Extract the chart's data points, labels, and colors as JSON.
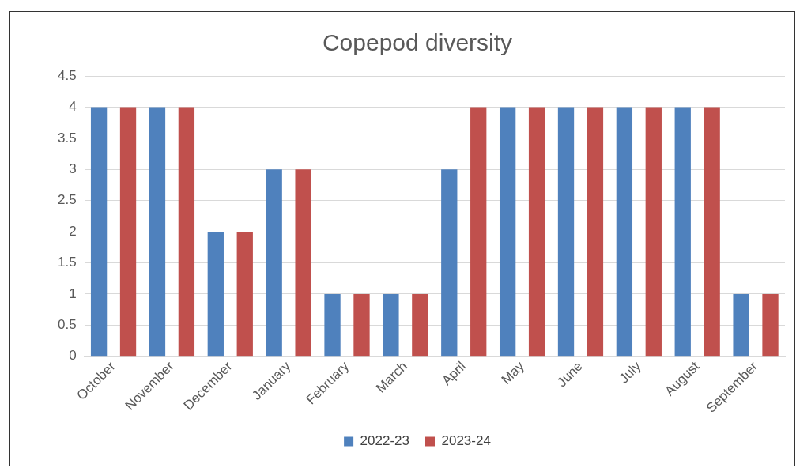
{
  "chart_data": {
    "type": "bar",
    "title": "Copepod diversity",
    "categories": [
      "October",
      "November",
      "December",
      "January",
      "February",
      "March",
      "April",
      "May",
      "June",
      "July",
      "August",
      "September"
    ],
    "series": [
      {
        "name": "2022-23",
        "color": "#4f81bd",
        "values": [
          4,
          4,
          2,
          3,
          1,
          1,
          3,
          4,
          4,
          4,
          4,
          1
        ]
      },
      {
        "name": "2023-24",
        "color": "#c0504d",
        "values": [
          4,
          4,
          2,
          3,
          1,
          1,
          4,
          4,
          4,
          4,
          4,
          1
        ]
      }
    ],
    "ylim": [
      0,
      4.5
    ],
    "yticks": [
      0,
      0.5,
      1,
      1.5,
      2,
      2.5,
      3,
      3.5,
      4,
      4.5
    ],
    "grid": "y",
    "legend": "bottom"
  }
}
